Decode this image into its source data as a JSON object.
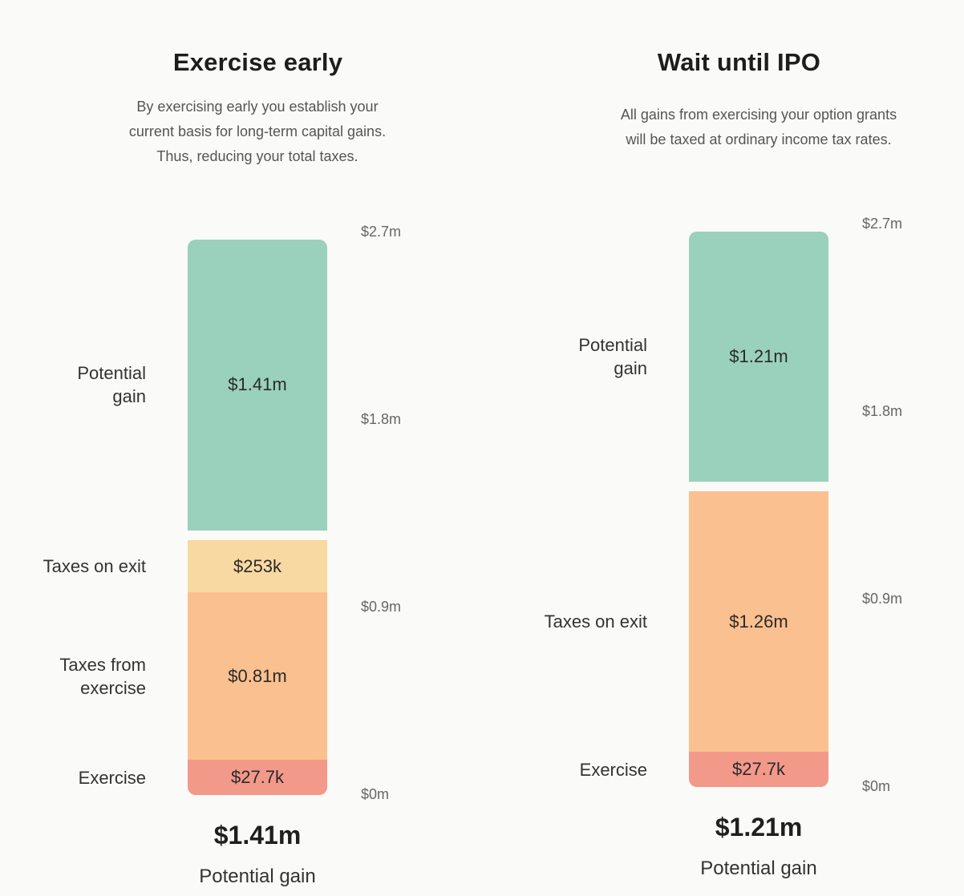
{
  "colors": {
    "potential_gain": "#99d1bc",
    "taxes_on_exit_early": "#f8d9a2",
    "taxes_from_exercise": "#fbc08f",
    "taxes_on_exit_ipo": "#fbc08f",
    "exercise": "#f2998a"
  },
  "chart_data": [
    {
      "type": "bar",
      "title": "Exercise early",
      "subtitle": [
        "By exercising early you establish your",
        "current basis for long-term capital gains.",
        "Thus, reducing your total taxes."
      ],
      "stacked": true,
      "y_ticks": [
        "$0m",
        "$0.9m",
        "$1.8m",
        "$2.7m"
      ],
      "ylim": [
        0,
        2.7
      ],
      "unit": "$m",
      "segments": [
        {
          "name": "Exercise",
          "label_lines": [
            "Exercise"
          ],
          "value": 0.0277,
          "display": "$27.7k",
          "color_key": "exercise"
        },
        {
          "name": "Taxes from exercise",
          "label_lines": [
            "Taxes from",
            "exercise"
          ],
          "value": 0.81,
          "display": "$0.81m",
          "color_key": "taxes_from_exercise"
        },
        {
          "name": "Taxes on exit",
          "label_lines": [
            "Taxes on exit"
          ],
          "value": 0.253,
          "display": "$253k",
          "color_key": "taxes_on_exit_early"
        },
        {
          "name": "Potential gain",
          "label_lines": [
            "Potential",
            "gain"
          ],
          "value": 1.41,
          "display": "$1.41m",
          "color_key": "potential_gain"
        }
      ],
      "total_value": "$1.41m",
      "total_label": "Potential gain"
    },
    {
      "type": "bar",
      "title": "Wait until IPO",
      "subtitle": [
        "All gains from exercising your option grants",
        "will be taxed at ordinary income tax rates."
      ],
      "stacked": true,
      "y_ticks": [
        "$0m",
        "$0.9m",
        "$1.8m",
        "$2.7m"
      ],
      "ylim": [
        0,
        2.7
      ],
      "unit": "$m",
      "segments": [
        {
          "name": "Exercise",
          "label_lines": [
            "Exercise"
          ],
          "value": 0.0277,
          "display": "$27.7k",
          "color_key": "exercise"
        },
        {
          "name": "Taxes on exit",
          "label_lines": [
            "Taxes on exit"
          ],
          "value": 1.26,
          "display": "$1.26m",
          "color_key": "taxes_on_exit_ipo"
        },
        {
          "name": "Potential gain",
          "label_lines": [
            "Potential",
            "gain"
          ],
          "value": 1.21,
          "display": "$1.21m",
          "color_key": "potential_gain"
        }
      ],
      "total_value": "$1.21m",
      "total_label": "Potential gain"
    }
  ]
}
